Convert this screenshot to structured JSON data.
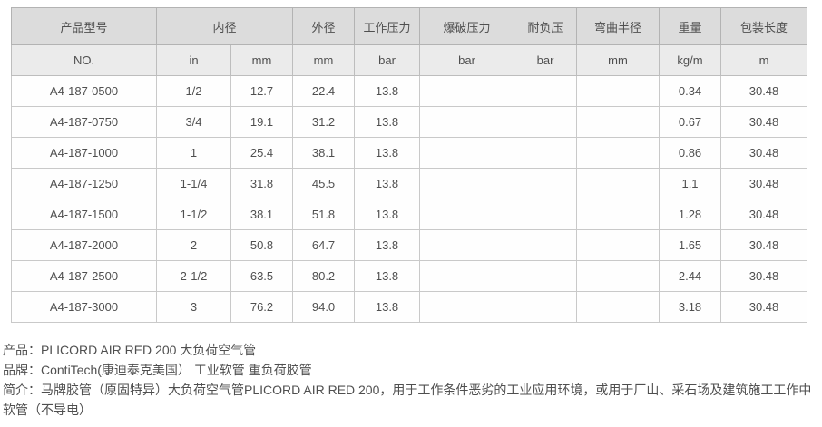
{
  "table": {
    "header_groups": [
      {
        "label": "产品型号",
        "colspan": 1
      },
      {
        "label": "内径",
        "colspan": 2
      },
      {
        "label": "外径",
        "colspan": 1
      },
      {
        "label": "工作压力",
        "colspan": 1
      },
      {
        "label": "爆破压力",
        "colspan": 1
      },
      {
        "label": "耐负压",
        "colspan": 1
      },
      {
        "label": "弯曲半径",
        "colspan": 1
      },
      {
        "label": "重量",
        "colspan": 1
      },
      {
        "label": "包装长度",
        "colspan": 1
      }
    ],
    "units_row": [
      "NO.",
      "in",
      "mm",
      "mm",
      "bar",
      "bar",
      "bar",
      "mm",
      "kg/m",
      "m"
    ],
    "rows": [
      [
        "A4-187-0500",
        "1/2",
        "12.7",
        "22.4",
        "13.8",
        "",
        "",
        "",
        "0.34",
        "30.48"
      ],
      [
        "A4-187-0750",
        "3/4",
        "19.1",
        "31.2",
        "13.8",
        "",
        "",
        "",
        "0.67",
        "30.48"
      ],
      [
        "A4-187-1000",
        "1",
        "25.4",
        "38.1",
        "13.8",
        "",
        "",
        "",
        "0.86",
        "30.48"
      ],
      [
        "A4-187-1250",
        "1-1/4",
        "31.8",
        "45.5",
        "13.8",
        "",
        "",
        "",
        "1.1",
        "30.48"
      ],
      [
        "A4-187-1500",
        "1-1/2",
        "38.1",
        "51.8",
        "13.8",
        "",
        "",
        "",
        "1.28",
        "30.48"
      ],
      [
        "A4-187-2000",
        "2",
        "50.8",
        "64.7",
        "13.8",
        "",
        "",
        "",
        "1.65",
        "30.48"
      ],
      [
        "A4-187-2500",
        "2-1/2",
        "63.5",
        "80.2",
        "13.8",
        "",
        "",
        "",
        "2.44",
        "30.48"
      ],
      [
        "A4-187-3000",
        "3",
        "76.2",
        "94.0",
        "13.8",
        "",
        "",
        "",
        "3.18",
        "30.48"
      ]
    ]
  },
  "details": {
    "product": "产品：PLICORD AIR RED 200 大负荷空气管",
    "brand": "品牌：ContiTech(康迪泰克美国） 工业软管 重负荷胶管",
    "intro": "简介：马牌胶管（原固特异）大负荷空气管PLICORD AIR RED 200，用于工作条件恶劣的工业应用环境，或用于厂山、采石场及建筑施工工作中软管（不导电）"
  },
  "colors": {
    "header_bg": "#dcdcdc",
    "units_row_bg": "#ebebeb",
    "data_row_bg": "#fefefe",
    "border": "#c9c9c9",
    "outer_border": "#b0b0b0",
    "text": "#4f4f4f"
  }
}
